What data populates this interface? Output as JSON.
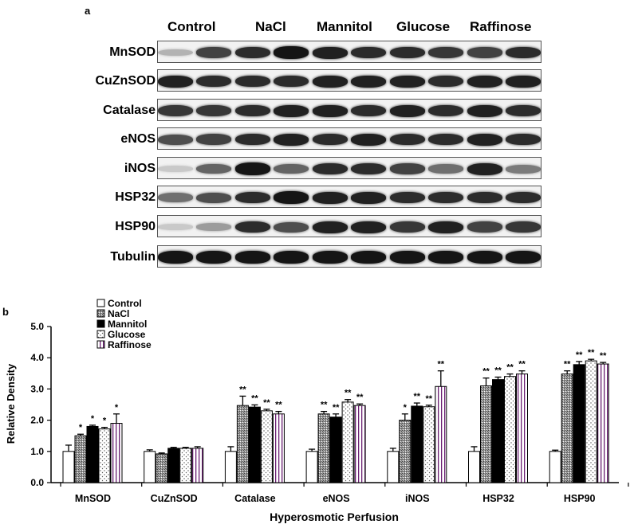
{
  "panels": {
    "a": "a",
    "b": "b"
  },
  "blot": {
    "groups": [
      "Control",
      "NaCl",
      "Mannitol",
      "Glucose",
      "Raffinose"
    ],
    "rows": [
      {
        "label": "MnSOD",
        "intensity": [
          0.25,
          0.75,
          0.85,
          0.95,
          0.9,
          0.85,
          0.85,
          0.8,
          0.75,
          0.85
        ]
      },
      {
        "label": "CuZnSOD",
        "intensity": [
          0.9,
          0.85,
          0.85,
          0.85,
          0.9,
          0.9,
          0.9,
          0.85,
          0.9,
          0.9
        ]
      },
      {
        "label": "Catalase",
        "intensity": [
          0.8,
          0.8,
          0.85,
          0.9,
          0.9,
          0.85,
          0.9,
          0.85,
          0.9,
          0.85
        ]
      },
      {
        "label": "eNOS",
        "intensity": [
          0.7,
          0.75,
          0.85,
          0.9,
          0.85,
          0.9,
          0.85,
          0.85,
          0.9,
          0.85
        ]
      },
      {
        "label": "iNOS",
        "intensity": [
          0.15,
          0.6,
          0.95,
          0.6,
          0.85,
          0.85,
          0.75,
          0.55,
          0.9,
          0.5
        ]
      },
      {
        "label": "HSP32",
        "intensity": [
          0.55,
          0.7,
          0.85,
          0.95,
          0.9,
          0.9,
          0.85,
          0.85,
          0.85,
          0.85
        ]
      },
      {
        "label": "HSP90",
        "intensity": [
          0.15,
          0.35,
          0.85,
          0.7,
          0.9,
          0.9,
          0.8,
          0.9,
          0.75,
          0.8
        ]
      },
      {
        "label": "Tubulin",
        "intensity": [
          0.95,
          0.95,
          0.95,
          0.95,
          0.95,
          0.95,
          0.95,
          0.95,
          0.95,
          0.95
        ]
      }
    ]
  },
  "chart_data": {
    "type": "bar",
    "ylabel": "Relative Density",
    "xlabel": "Hyperosmotic Perfusion",
    "ylim": [
      0,
      5
    ],
    "yticks": [
      "0.0",
      "1.0",
      "2.0",
      "3.0",
      "4.0",
      "5.0"
    ],
    "categories": [
      "MnSOD",
      "CuZnSOD",
      "Catalase",
      "eNOS",
      "iNOS",
      "HSP32",
      "HSP90"
    ],
    "legend_position": "top-left",
    "series": [
      {
        "name": "Control",
        "pattern": "white",
        "values": [
          1.0,
          1.0,
          1.0,
          1.0,
          1.0,
          1.0,
          1.0
        ],
        "errors": [
          0.2,
          0.05,
          0.15,
          0.07,
          0.1,
          0.15,
          0.04
        ],
        "sig": [
          "",
          "",
          "",
          "",
          "",
          "",
          ""
        ]
      },
      {
        "name": "NaCl",
        "pattern": "gray",
        "values": [
          1.5,
          0.92,
          2.47,
          2.2,
          2.0,
          3.1,
          3.48
        ],
        "errors": [
          0.05,
          0.03,
          0.3,
          0.08,
          0.2,
          0.25,
          0.1
        ],
        "sig": [
          "*",
          "",
          "**",
          "**",
          "*",
          "**",
          "**"
        ]
      },
      {
        "name": "Mannitol",
        "pattern": "black",
        "values": [
          1.8,
          1.1,
          2.42,
          2.1,
          2.45,
          3.3,
          3.78
        ],
        "errors": [
          0.04,
          0.03,
          0.07,
          0.1,
          0.1,
          0.08,
          0.1
        ],
        "sig": [
          "*",
          "",
          "**",
          "**",
          "**",
          "**",
          "**"
        ]
      },
      {
        "name": "Glucose",
        "pattern": "dots",
        "values": [
          1.72,
          1.1,
          2.3,
          2.58,
          2.43,
          3.4,
          3.9
        ],
        "errors": [
          0.05,
          0.03,
          0.05,
          0.08,
          0.05,
          0.08,
          0.05
        ],
        "sig": [
          "*",
          "",
          "**",
          "**",
          "**",
          "**",
          "**"
        ]
      },
      {
        "name": "Raffinose",
        "pattern": "stripe",
        "values": [
          1.9,
          1.1,
          2.2,
          2.47,
          3.08,
          3.48,
          3.8
        ],
        "errors": [
          0.3,
          0.05,
          0.08,
          0.05,
          0.5,
          0.1,
          0.05
        ],
        "sig": [
          "*",
          "",
          "**",
          "**",
          "**",
          "**",
          "**"
        ]
      }
    ]
  }
}
